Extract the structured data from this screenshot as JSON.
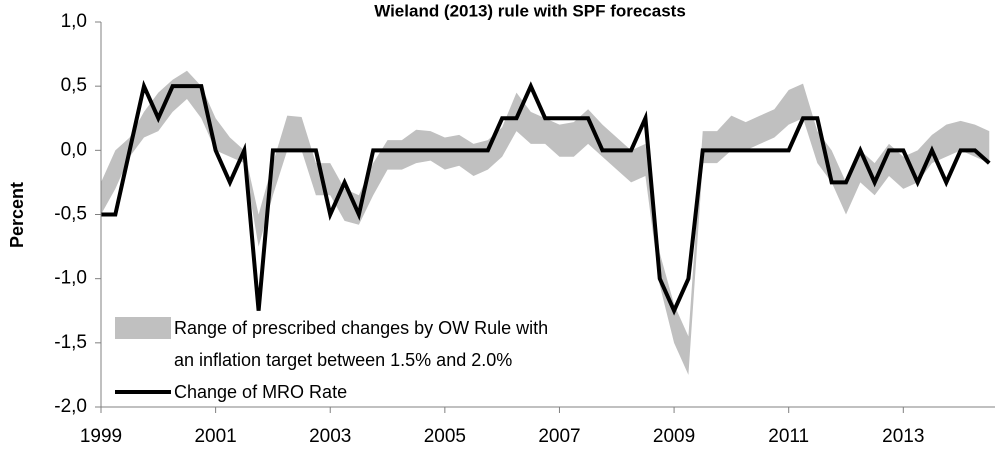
{
  "chart_data": {
    "type": "line",
    "title": "Wieland (2013) rule with SPF forecasts",
    "y_label": "Percent",
    "x": [
      1999,
      1999.25,
      1999.5,
      1999.75,
      2000,
      2000.25,
      2000.5,
      2000.75,
      2001,
      2001.25,
      2001.5,
      2001.75,
      2002,
      2002.25,
      2002.5,
      2002.75,
      2003,
      2003.25,
      2003.5,
      2003.75,
      2004,
      2004.25,
      2004.5,
      2004.75,
      2005,
      2005.25,
      2005.5,
      2005.75,
      2006,
      2006.25,
      2006.5,
      2006.75,
      2007,
      2007.25,
      2007.5,
      2007.75,
      2008,
      2008.25,
      2008.5,
      2008.75,
      2009,
      2009.25,
      2009.5,
      2009.75,
      2010,
      2010.25,
      2010.5,
      2010.75,
      2011,
      2011.25,
      2011.5,
      2011.75,
      2012,
      2012.25,
      2012.5,
      2012.75,
      2013,
      2013.25,
      2013.5,
      2013.75,
      2014,
      2014.25,
      2014.5
    ],
    "xlim": [
      1999,
      2014.6
    ],
    "xticks": [
      1999,
      2001,
      2003,
      2005,
      2007,
      2009,
      2011,
      2013
    ],
    "ylim": [
      -2,
      1
    ],
    "yticks": [
      {
        "value": -2,
        "label": "-2,0"
      },
      {
        "value": -1.5,
        "label": "-1,5"
      },
      {
        "value": -1,
        "label": "-1,0"
      },
      {
        "value": -0.5,
        "label": "-0,5"
      },
      {
        "value": 0,
        "label": "0,0"
      },
      {
        "value": 0.5,
        "label": "0,5"
      },
      {
        "value": 1,
        "label": "1,0"
      }
    ],
    "legend": "lower-left",
    "series": [
      {
        "name": "Range of prescribed changes by OW Rule with\nan inflation target between 1.5% and 2.0%",
        "type": "band",
        "color": "#c0c0c0",
        "lower": [
          -0.5,
          -0.3,
          -0.05,
          0.1,
          0.15,
          0.3,
          0.4,
          0.25,
          0.0,
          -0.05,
          -0.1,
          -0.75,
          -0.35,
          0.0,
          0.0,
          -0.35,
          -0.35,
          -0.55,
          -0.58,
          -0.35,
          -0.15,
          -0.15,
          -0.1,
          -0.08,
          -0.15,
          -0.12,
          -0.2,
          -0.15,
          -0.05,
          0.15,
          0.05,
          0.05,
          -0.05,
          -0.05,
          0.05,
          -0.05,
          -0.15,
          -0.25,
          -0.2,
          -1.05,
          -1.5,
          -1.75,
          -0.1,
          -0.1,
          0.0,
          0.0,
          0.05,
          0.1,
          0.2,
          0.25,
          -0.1,
          -0.25,
          -0.5,
          -0.25,
          -0.35,
          -0.2,
          -0.3,
          -0.25,
          -0.1,
          -0.05,
          0.0,
          -0.05,
          -0.1
        ],
        "upper": [
          -0.25,
          0.0,
          0.1,
          0.3,
          0.45,
          0.55,
          0.62,
          0.5,
          0.25,
          0.1,
          0.0,
          -0.5,
          -0.1,
          0.27,
          0.26,
          -0.1,
          -0.1,
          -0.3,
          -0.35,
          -0.1,
          0.08,
          0.08,
          0.16,
          0.15,
          0.1,
          0.12,
          0.05,
          0.08,
          0.18,
          0.45,
          0.3,
          0.25,
          0.2,
          0.22,
          0.32,
          0.2,
          0.1,
          0.0,
          0.05,
          -0.8,
          -1.2,
          -1.45,
          0.15,
          0.15,
          0.27,
          0.22,
          0.27,
          0.32,
          0.47,
          0.52,
          0.15,
          0.0,
          -0.25,
          0.0,
          -0.1,
          0.05,
          -0.05,
          0.0,
          0.12,
          0.2,
          0.23,
          0.2,
          0.15
        ]
      },
      {
        "name": "Change of MRO Rate",
        "color": "#000000",
        "values": [
          -0.5,
          -0.5,
          0,
          0.5,
          0.25,
          0.5,
          0.5,
          0.5,
          0,
          -0.25,
          0,
          -1.25,
          0,
          0,
          0,
          0,
          -0.5,
          -0.25,
          -0.5,
          0,
          0,
          0,
          0,
          0,
          0,
          0,
          0,
          0,
          0.25,
          0.25,
          0.5,
          0.25,
          0.25,
          0.25,
          0.25,
          0,
          0,
          0,
          0.25,
          -1,
          -1.25,
          -1,
          0,
          0,
          0,
          0,
          0,
          0,
          0,
          0.25,
          0.25,
          -0.25,
          -0.25,
          0,
          -0.25,
          0,
          0,
          -0.25,
          0,
          -0.25,
          0,
          0,
          -0.1
        ]
      }
    ]
  }
}
